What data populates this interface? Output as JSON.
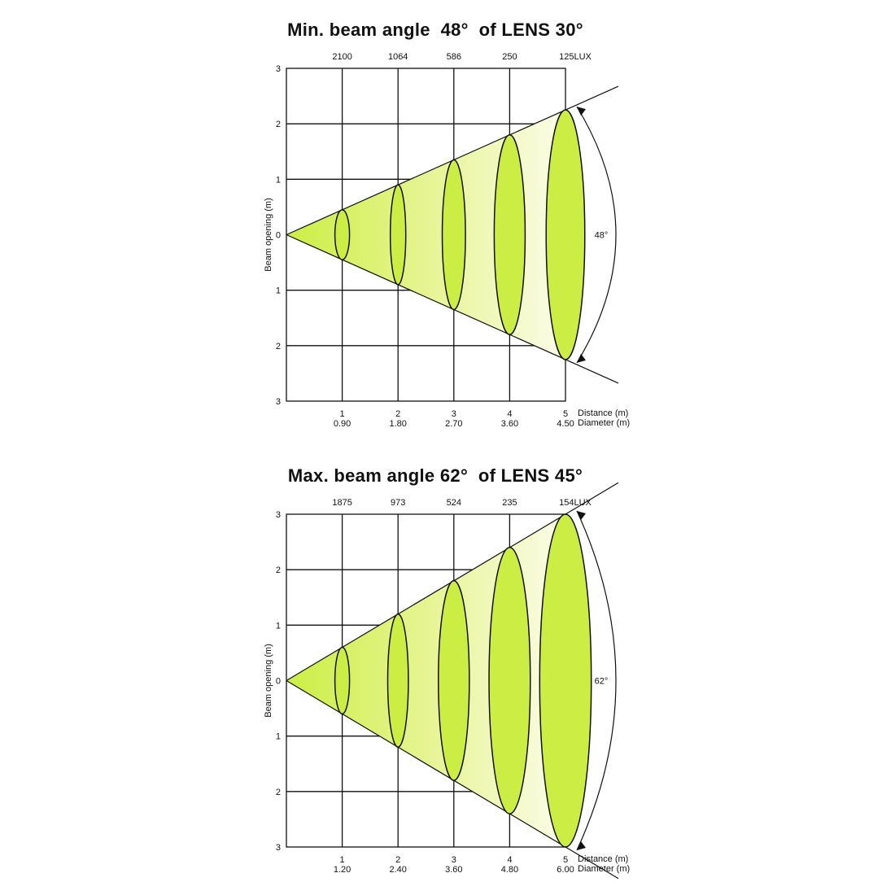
{
  "chart_data": [
    {
      "type": "diagram",
      "title": "Min. beam angle  48°  of LENS 30°",
      "ylabel": "Beam opening (m)",
      "y_ticks": [
        "3",
        "2",
        "1",
        "0",
        "1",
        "2",
        "3"
      ],
      "ylim": [
        -3,
        3
      ],
      "xlim": [
        0,
        5
      ],
      "distance_label": "Distance (m)",
      "diameter_label": "Diameter (m)",
      "distance": [
        "1",
        "2",
        "3",
        "4",
        "5"
      ],
      "diameter": [
        "0.90",
        "1.80",
        "2.70",
        "3.60",
        "4.50"
      ],
      "lux": [
        "2100",
        "1064",
        "586",
        "250",
        "125LUX"
      ],
      "diameter_values": [
        0.9,
        1.8,
        2.7,
        3.6,
        4.5
      ],
      "angle_label": "48°",
      "fill_color": "#ccee44"
    },
    {
      "type": "diagram",
      "title": "Max. beam angle 62°  of LENS 45°",
      "ylabel": "Beam opening (m)",
      "y_ticks": [
        "3",
        "2",
        "1",
        "0",
        "1",
        "2",
        "3"
      ],
      "ylim": [
        -3,
        3
      ],
      "xlim": [
        0,
        5
      ],
      "distance_label": "Distance (m)",
      "diameter_label": "Diameter (m)",
      "distance": [
        "1",
        "2",
        "3",
        "4",
        "5"
      ],
      "diameter": [
        "1.20",
        "2.40",
        "3.60",
        "4.80",
        "6.00"
      ],
      "lux": [
        "1875",
        "973",
        "524",
        "235",
        "154LUX"
      ],
      "diameter_values": [
        1.2,
        2.4,
        3.6,
        4.8,
        6.0
      ],
      "angle_label": "62°",
      "fill_color": "#ccee44"
    }
  ]
}
